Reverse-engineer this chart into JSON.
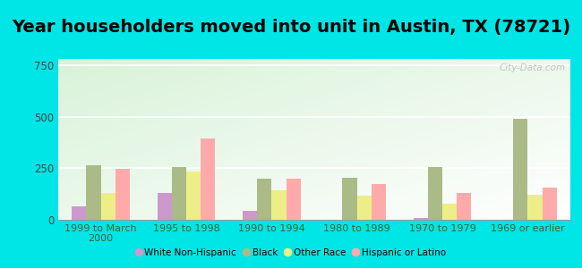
{
  "title": "Year householders moved into unit in Austin, TX (78721)",
  "categories": [
    "1999 to March\n2000",
    "1995 to 1998",
    "1990 to 1994",
    "1980 to 1989",
    "1970 to 1979",
    "1969 or earlier"
  ],
  "series": {
    "White Non-Hispanic": [
      65,
      130,
      45,
      0,
      10,
      0
    ],
    "Black": [
      265,
      255,
      200,
      205,
      255,
      490
    ],
    "Other Race": [
      130,
      235,
      145,
      115,
      80,
      120
    ],
    "Hispanic or Latino": [
      245,
      395,
      200,
      175,
      130,
      155
    ]
  },
  "colors": {
    "White Non-Hispanic": "#cc99cc",
    "Black": "#aabb88",
    "Other Race": "#eeee88",
    "Hispanic or Latino": "#ffaaaa"
  },
  "ylim": [
    0,
    780
  ],
  "yticks": [
    0,
    250,
    500,
    750
  ],
  "background_outer": "#00e5e5",
  "title_fontsize": 14,
  "bar_width": 0.17,
  "watermark": "City-Data.com"
}
